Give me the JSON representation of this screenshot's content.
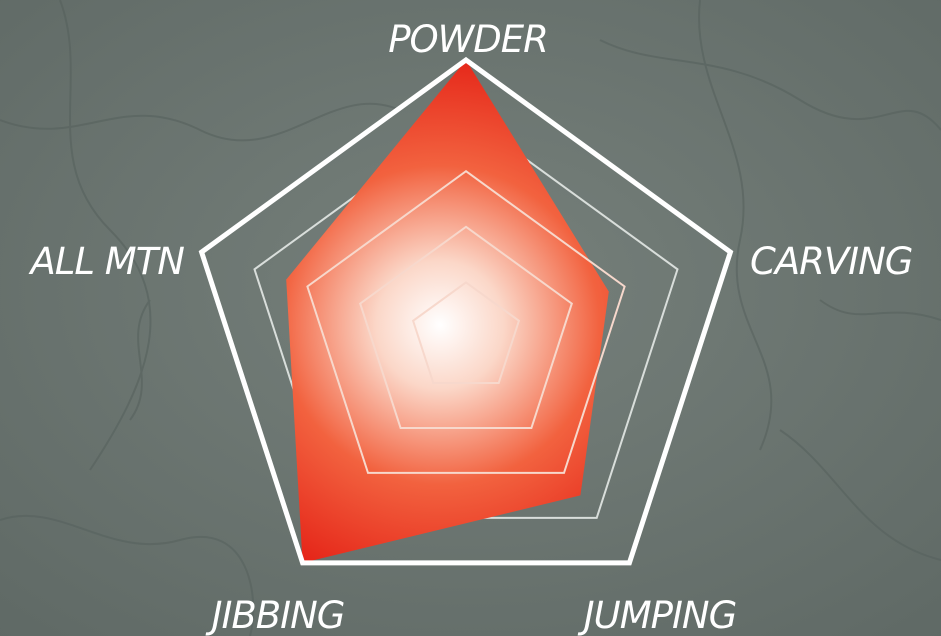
{
  "chart_data": {
    "type": "radar",
    "title": "",
    "axes": [
      "POWDER",
      "CARVING",
      "JUMPING",
      "JIBBING",
      "ALL MTN"
    ],
    "rings": 5,
    "range": [
      0,
      5
    ],
    "grid": true,
    "series": [
      {
        "values": [
          5,
          2.7,
          3.5,
          5,
          3.4
        ]
      }
    ],
    "colors": {
      "background": "#6b7570",
      "frame": "#ffffff",
      "fill_outer": "#e8251a",
      "fill_inner": "#ffffff",
      "ring": "#f7d8cc"
    }
  }
}
